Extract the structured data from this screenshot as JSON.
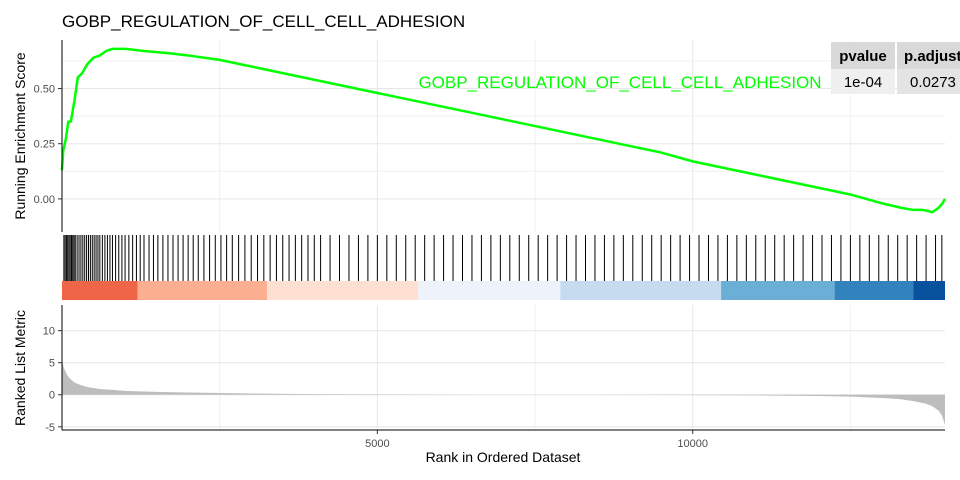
{
  "chart_data": {
    "type": "line",
    "title": "GOBP_REGULATION_OF_CELL_CELL_ADHESION",
    "xlabel": "Rank in Ordered Dataset",
    "x_ticks": [
      5000,
      10000
    ],
    "xlim": [
      0,
      14000
    ],
    "line_color": "#00ff00",
    "enrichment": {
      "ylabel": "Running Enrichment Score",
      "ylim": [
        -0.15,
        0.72
      ],
      "y_ticks": [
        0.0,
        0.25,
        0.5
      ],
      "y_tick_labels": [
        "0.00",
        "0.25",
        "0.50"
      ],
      "series": [
        {
          "name": "GOBP_REGULATION_OF_CELL_CELL_ADHESION",
          "x": [
            0,
            20,
            60,
            100,
            140,
            200,
            250,
            320,
            400,
            500,
            600,
            700,
            800,
            1000,
            1300,
            1700,
            2000,
            2500,
            3000,
            3500,
            4000,
            4500,
            5000,
            5500,
            6000,
            6500,
            7000,
            7500,
            8000,
            8500,
            9000,
            9500,
            10000,
            10500,
            11000,
            11500,
            12000,
            12500,
            13000,
            13300,
            13500,
            13650,
            13800,
            13900,
            13960,
            14000
          ],
          "y": [
            0.13,
            0.22,
            0.27,
            0.35,
            0.35,
            0.45,
            0.55,
            0.57,
            0.61,
            0.64,
            0.65,
            0.67,
            0.68,
            0.68,
            0.67,
            0.66,
            0.65,
            0.63,
            0.6,
            0.57,
            0.54,
            0.51,
            0.48,
            0.45,
            0.42,
            0.39,
            0.36,
            0.33,
            0.3,
            0.27,
            0.24,
            0.21,
            0.17,
            0.14,
            0.11,
            0.08,
            0.05,
            0.02,
            -0.02,
            -0.04,
            -0.05,
            -0.05,
            -0.06,
            -0.04,
            -0.02,
            0.0
          ]
        }
      ]
    },
    "ranked_metric": {
      "ylabel": "Ranked List Metric",
      "ylim": [
        -5.5,
        14
      ],
      "y_ticks": [
        -5,
        0,
        5,
        10
      ],
      "y_tick_labels": [
        "-5",
        "0",
        "5",
        "10"
      ],
      "fill_color": "#bdbdbd",
      "x": [
        0,
        10,
        30,
        60,
        100,
        150,
        200,
        300,
        400,
        600,
        800,
        1000,
        1500,
        2000,
        3000,
        4000,
        5000,
        6000,
        7000,
        8000,
        9000,
        10000,
        11000,
        12000,
        12500,
        13000,
        13300,
        13500,
        13700,
        13800,
        13900,
        13950,
        14000
      ],
      "y": [
        6.0,
        5.0,
        4.2,
        3.5,
        2.8,
        2.3,
        1.9,
        1.5,
        1.2,
        0.9,
        0.75,
        0.6,
        0.45,
        0.35,
        0.2,
        0.1,
        0.05,
        0.02,
        0.0,
        0.0,
        -0.02,
        -0.05,
        -0.1,
        -0.2,
        -0.3,
        -0.5,
        -0.7,
        -1.0,
        -1.4,
        -1.8,
        -2.5,
        -3.2,
        -4.7
      ]
    },
    "gene_hits": [
      30,
      50,
      70,
      90,
      110,
      130,
      150,
      170,
      190,
      210,
      240,
      270,
      300,
      330,
      360,
      390,
      420,
      450,
      480,
      510,
      540,
      570,
      600,
      640,
      680,
      720,
      760,
      800,
      850,
      900,
      950,
      1000,
      1060,
      1120,
      1180,
      1240,
      1300,
      1380,
      1450,
      1520,
      1600,
      1680,
      1760,
      1840,
      1920,
      2000,
      2080,
      2160,
      2250,
      2340,
      2430,
      2520,
      2610,
      2700,
      2800,
      2900,
      3000,
      3100,
      3200,
      3300,
      3400,
      3500,
      3600,
      3700,
      3800,
      3900,
      4000,
      4100,
      4250,
      4400,
      4550,
      4700,
      4850,
      5000,
      5150,
      5300,
      5450,
      5600,
      5750,
      5900,
      6050,
      6200,
      6350,
      6500,
      6650,
      6800,
      6950,
      7100,
      7250,
      7400,
      7550,
      7700,
      7850,
      8000,
      8150,
      8300,
      8450,
      8600,
      8750,
      8900,
      9050,
      9200,
      9350,
      9500,
      9650,
      9800,
      9950,
      10100,
      10250,
      10400,
      10550,
      10700,
      10850,
      11000,
      11150,
      11300,
      11450,
      11600,
      11750,
      11900,
      12050,
      12200,
      12350,
      12500,
      12650,
      12800,
      12950,
      13100,
      13250,
      13400,
      13550,
      13700,
      13850,
      13950
    ],
    "color_bar": {
      "segments": [
        {
          "start": 0,
          "end": 1200,
          "color": "#ef6548"
        },
        {
          "start": 1200,
          "end": 3250,
          "color": "#fcae91"
        },
        {
          "start": 3250,
          "end": 5650,
          "color": "#fde0d2"
        },
        {
          "start": 5650,
          "end": 7900,
          "color": "#eef3fb"
        },
        {
          "start": 7900,
          "end": 10450,
          "color": "#c6dbef"
        },
        {
          "start": 10450,
          "end": 12250,
          "color": "#6baed6"
        },
        {
          "start": 12250,
          "end": 13500,
          "color": "#3182bd"
        },
        {
          "start": 13500,
          "end": 14000,
          "color": "#08519c"
        }
      ]
    },
    "table": {
      "headers": [
        "pvalue",
        "p.adjust"
      ],
      "row": [
        "1e-04",
        "0.0273"
      ]
    }
  }
}
